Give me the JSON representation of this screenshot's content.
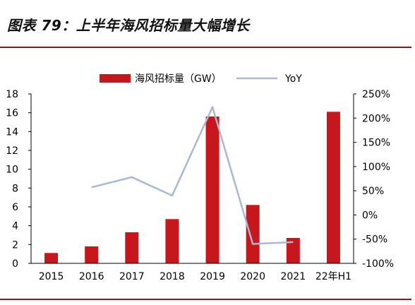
{
  "figure": {
    "title": "图表 79：上半年海风招标量大幅增长"
  },
  "chart_data": {
    "type": "bar",
    "categories": [
      "2015",
      "2016",
      "2017",
      "2018",
      "2019",
      "2020",
      "2021",
      "22年H1"
    ],
    "series": [
      {
        "name": "海风招标量（GW）",
        "kind": "bar",
        "axis": "left",
        "color": "#c8161d",
        "values": [
          1.1,
          1.8,
          3.3,
          4.7,
          15.6,
          6.2,
          2.7,
          16.1
        ]
      },
      {
        "name": "YoY",
        "kind": "line",
        "axis": "right",
        "color": "#a9b8d4",
        "values": [
          null,
          0.57,
          0.78,
          0.4,
          2.23,
          -0.6,
          -0.56,
          null
        ]
      }
    ],
    "yleft": {
      "min": 0,
      "max": 18,
      "ticks": [
        "0",
        "2",
        "4",
        "6",
        "8",
        "10",
        "12",
        "14",
        "16",
        "18"
      ]
    },
    "yright": {
      "min": -1.0,
      "max": 2.5,
      "ticks": [
        "-100%",
        "-50%",
        "0%",
        "50%",
        "100%",
        "150%",
        "200%",
        "250%"
      ]
    },
    "legend": {
      "position": "top-center"
    },
    "grid": false
  }
}
